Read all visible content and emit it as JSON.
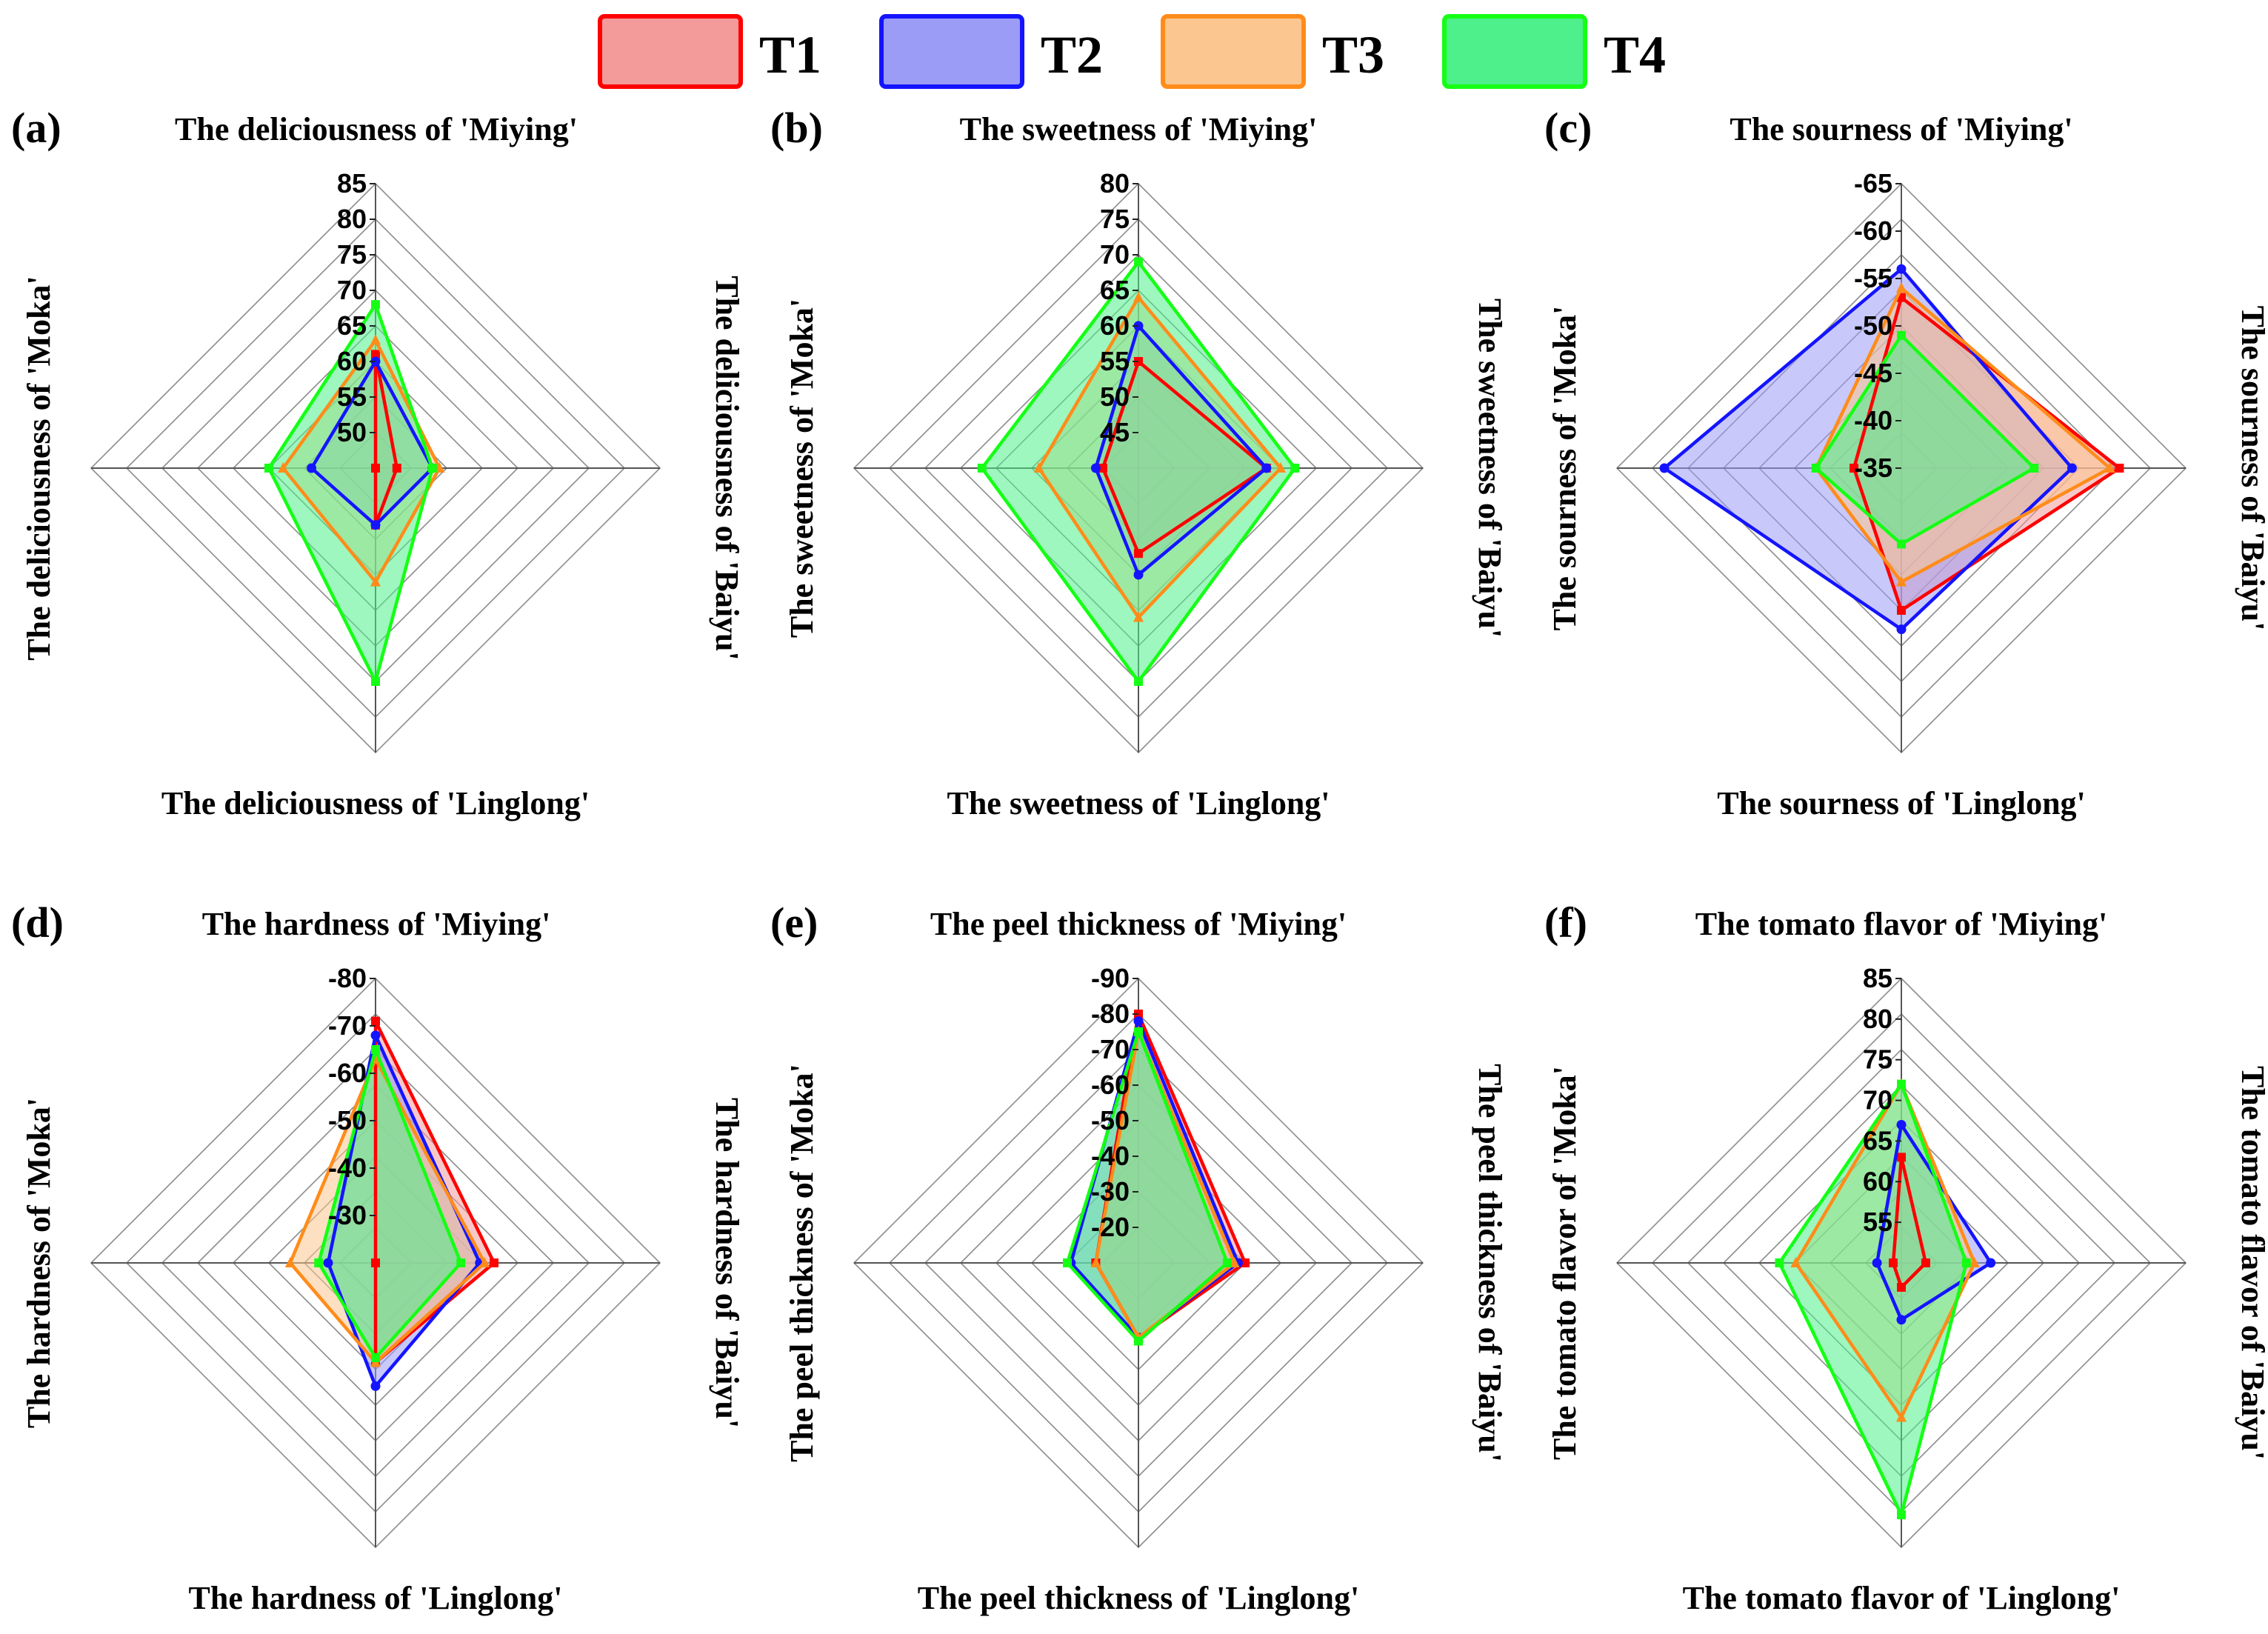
{
  "legend": [
    {
      "key": "T1",
      "label": "T1",
      "fill": "#f39a9a",
      "stroke": "#ff0000"
    },
    {
      "key": "T2",
      "label": "T2",
      "fill": "#9b9cf5",
      "stroke": "#1414ff"
    },
    {
      "key": "T3",
      "label": "T3",
      "fill": "#fbc68f",
      "stroke": "#ff8c1a"
    },
    {
      "key": "T4",
      "label": "T4",
      "fill": "#4df08a",
      "stroke": "#14ff14"
    }
  ],
  "chart_data": [
    {
      "type": "radar",
      "panel": "(a)",
      "title": "The deliciousness of 'Miying'",
      "axes": [
        "The deliciousness of 'Miying'",
        "The deliciousness of 'Baiyu'",
        "The deliciousness of 'Linglong'",
        "The deliciousness of 'Moka'"
      ],
      "range": [
        45,
        85
      ],
      "ticks": [
        50,
        55,
        60,
        65,
        70,
        75,
        80,
        85
      ],
      "series": [
        {
          "name": "T1",
          "values": [
            61,
            48,
            53,
            45
          ]
        },
        {
          "name": "T2",
          "values": [
            60,
            53,
            53,
            54
          ]
        },
        {
          "name": "T3",
          "values": [
            63,
            54,
            61,
            58
          ]
        },
        {
          "name": "T4",
          "values": [
            68,
            53,
            75,
            60
          ]
        }
      ]
    },
    {
      "type": "radar",
      "panel": "(b)",
      "title": "The sweetness of 'Miying'",
      "axes": [
        "The sweetness of 'Miying'",
        "The sweetness of 'Baiyu'",
        "The sweetness of 'Linglong'",
        "The sweetness of 'Moka'"
      ],
      "range": [
        40,
        80
      ],
      "ticks": [
        45,
        50,
        55,
        60,
        65,
        70,
        75,
        80
      ],
      "series": [
        {
          "name": "T1",
          "values": [
            55,
            58,
            52,
            45
          ]
        },
        {
          "name": "T2",
          "values": [
            60,
            58,
            55,
            46
          ]
        },
        {
          "name": "T3",
          "values": [
            64,
            60,
            61,
            54
          ]
        },
        {
          "name": "T4",
          "values": [
            69,
            62,
            70,
            62
          ]
        }
      ]
    },
    {
      "type": "radar",
      "panel": "(c)",
      "title": "The  sourness of 'Miying'",
      "axes": [
        "The  sourness of 'Miying'",
        "The  sourness of 'Baiyu'",
        "The  sourness of 'Linglong'",
        "The sourness of 'Moka'"
      ],
      "range": [
        -35,
        -65
      ],
      "ticks": [
        -35,
        -40,
        -45,
        -50,
        -55,
        -60,
        -65
      ],
      "series": [
        {
          "name": "T1",
          "values": [
            -53,
            -58,
            -50,
            -40
          ]
        },
        {
          "name": "T2",
          "values": [
            -56,
            -53,
            -52,
            -60
          ]
        },
        {
          "name": "T3",
          "values": [
            -54,
            -57,
            -47,
            -44
          ]
        },
        {
          "name": "T4",
          "values": [
            -49,
            -49,
            -43,
            -44
          ]
        }
      ]
    },
    {
      "type": "radar",
      "panel": "(d)",
      "title": "The hardness of 'Miying'",
      "axes": [
        "The hardness of 'Miying'",
        "The hardness of 'Baiyu'",
        "The hardness of 'Linglong'",
        "The hardness of 'Moka'"
      ],
      "range": [
        -20,
        -80
      ],
      "ticks": [
        -30,
        -40,
        -50,
        -60,
        -70,
        -80
      ],
      "series": [
        {
          "name": "T1",
          "values": [
            -71,
            -45,
            -41,
            -20
          ]
        },
        {
          "name": "T2",
          "values": [
            -68,
            -42,
            -46,
            -30
          ]
        },
        {
          "name": "T3",
          "values": [
            -63,
            -43,
            -41,
            -38
          ]
        },
        {
          "name": "T4",
          "values": [
            -65,
            -38,
            -40,
            -32
          ]
        }
      ]
    },
    {
      "type": "radar",
      "panel": "(e)",
      "title": "The peel thickness of 'Miying'",
      "axes": [
        "The peel thickness of 'Miying'",
        "The peel thickness of 'Baiyu'",
        "The peel thickness of 'Linglong'",
        "The peel thickness of 'Moka'"
      ],
      "range": [
        -10,
        -90
      ],
      "ticks": [
        -20,
        -30,
        -40,
        -50,
        -60,
        -70,
        -80,
        -90
      ],
      "series": [
        {
          "name": "T1",
          "values": [
            -80,
            -40,
            -31,
            -22
          ]
        },
        {
          "name": "T2",
          "values": [
            -78,
            -38,
            -31,
            -29
          ]
        },
        {
          "name": "T3",
          "values": [
            -75,
            -37,
            -31,
            -22
          ]
        },
        {
          "name": "T4",
          "values": [
            -75,
            -35,
            -32,
            -30
          ]
        }
      ]
    },
    {
      "type": "radar",
      "panel": "(f)",
      "title": "The tomato flavor of 'Miying'",
      "axes": [
        "The tomato flavor of 'Miying'",
        "The tomato flavor of 'Baiyu'",
        "The tomato flavor of 'Linglong'",
        "The tomato flavor of 'Moka'"
      ],
      "range": [
        50,
        85
      ],
      "ticks": [
        55,
        60,
        65,
        70,
        75,
        80,
        85
      ],
      "series": [
        {
          "name": "T1",
          "values": [
            63,
            53,
            53,
            51
          ]
        },
        {
          "name": "T2",
          "values": [
            67,
            61,
            57,
            53
          ]
        },
        {
          "name": "T3",
          "values": [
            72,
            59,
            69,
            63
          ]
        },
        {
          "name": "T4",
          "values": [
            72,
            58,
            81,
            65
          ]
        }
      ]
    }
  ]
}
